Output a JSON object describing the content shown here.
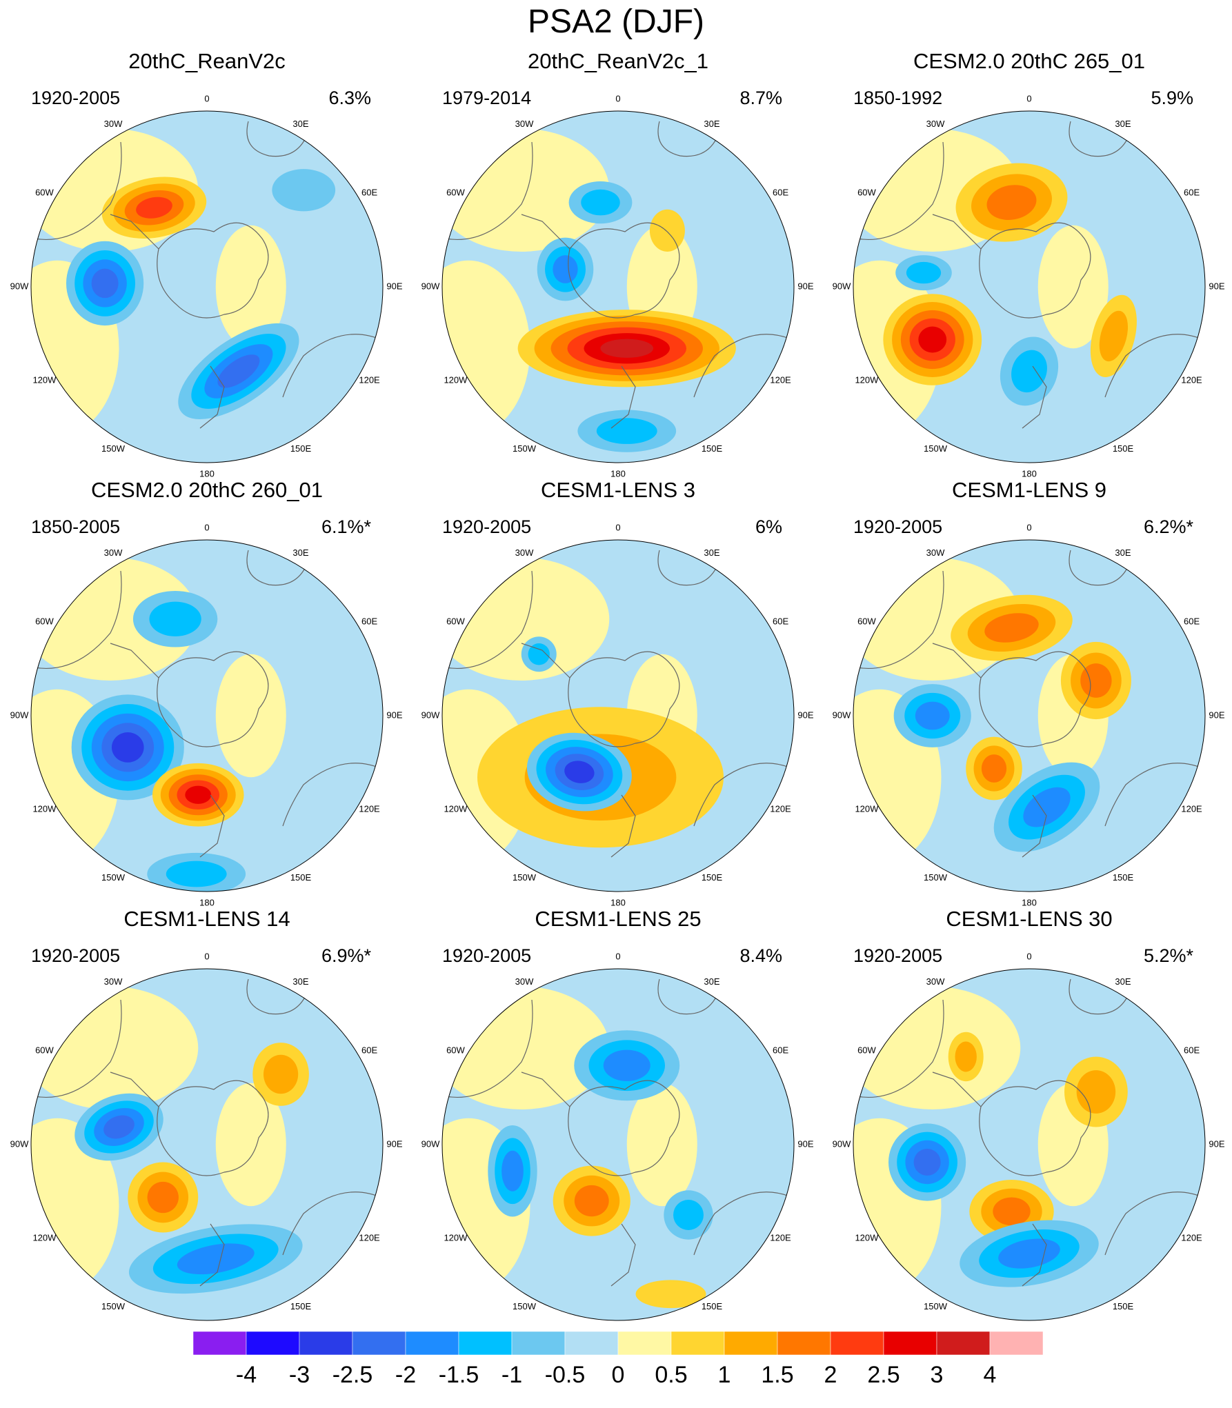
{
  "chart_data": {
    "type": "polar contour map panels",
    "title": "PSA2 (DJF)",
    "longitude_labels": [
      "0",
      "30E",
      "60E",
      "90E",
      "120E",
      "150E",
      "180",
      "150W",
      "120W",
      "90W",
      "60W",
      "30W"
    ],
    "colorbar": {
      "tick_labels": [
        "-4",
        "-3",
        "-2.5",
        "-2",
        "-1.5",
        "-1",
        "-0.5",
        "0",
        "0.5",
        "1",
        "1.5",
        "2",
        "2.5",
        "3",
        "4"
      ],
      "colors": [
        "#8a1ef0",
        "#1e0aff",
        "#2a3ce8",
        "#336ff0",
        "#1e8cff",
        "#00c0ff",
        "#6cc8f0",
        "#b2dff4",
        "#fff8a4",
        "#ffd530",
        "#ffaa00",
        "#ff7700",
        "#ff3b10",
        "#e80000",
        "#d01c1c",
        "#ffb2b2"
      ]
    },
    "panels": [
      {
        "title": "20thC_ReanV2c",
        "period": "1920-2005",
        "variance": "6.3%",
        "blobs": [
          {
            "x": -0.3,
            "y": 0.45,
            "rx": 0.3,
            "ry": 0.17,
            "rot": -10,
            "level": 4
          },
          {
            "x": -0.58,
            "y": 0.02,
            "rx": 0.22,
            "ry": 0.24,
            "rot": 0,
            "level": -4
          },
          {
            "x": 0.18,
            "y": -0.48,
            "rx": 0.4,
            "ry": 0.18,
            "rot": -35,
            "level": -4
          },
          {
            "x": 0.55,
            "y": 0.55,
            "rx": 0.18,
            "ry": 0.12,
            "rot": 0,
            "level": -1
          }
        ]
      },
      {
        "title": "20thC_ReanV2c_1",
        "period": "1979-2014",
        "variance": "8.7%",
        "blobs": [
          {
            "x": 0.05,
            "y": -0.35,
            "rx": 0.62,
            "ry": 0.22,
            "rot": 0,
            "level": 6
          },
          {
            "x": -0.3,
            "y": 0.1,
            "rx": 0.16,
            "ry": 0.18,
            "rot": 0,
            "level": -3
          },
          {
            "x": -0.1,
            "y": 0.48,
            "rx": 0.18,
            "ry": 0.12,
            "rot": 0,
            "level": -2
          },
          {
            "x": 0.05,
            "y": -0.82,
            "rx": 0.28,
            "ry": 0.12,
            "rot": 0,
            "level": -2
          },
          {
            "x": 0.28,
            "y": 0.32,
            "rx": 0.1,
            "ry": 0.12,
            "rot": 0,
            "level": 1
          }
        ]
      },
      {
        "title": "CESM2.0 20thC 265_01",
        "period": "1850-1992",
        "variance": "5.9%",
        "blobs": [
          {
            "x": -0.1,
            "y": 0.48,
            "rx": 0.32,
            "ry": 0.22,
            "rot": -10,
            "level": 3
          },
          {
            "x": -0.55,
            "y": -0.3,
            "rx": 0.28,
            "ry": 0.26,
            "rot": 0,
            "level": 5
          },
          {
            "x": 0.0,
            "y": -0.48,
            "rx": 0.16,
            "ry": 0.2,
            "rot": 20,
            "level": -2
          },
          {
            "x": 0.48,
            "y": -0.28,
            "rx": 0.12,
            "ry": 0.24,
            "rot": 15,
            "level": 2
          },
          {
            "x": -0.6,
            "y": 0.08,
            "rx": 0.16,
            "ry": 0.1,
            "rot": 0,
            "level": -2
          }
        ]
      },
      {
        "title": "CESM2.0 20thC 260_01",
        "period": "1850-2005",
        "variance": "6.1%*",
        "blobs": [
          {
            "x": -0.45,
            "y": -0.18,
            "rx": 0.32,
            "ry": 0.3,
            "rot": 0,
            "level": -5
          },
          {
            "x": -0.05,
            "y": -0.45,
            "rx": 0.26,
            "ry": 0.18,
            "rot": 0,
            "level": 5
          },
          {
            "x": -0.18,
            "y": 0.55,
            "rx": 0.24,
            "ry": 0.16,
            "rot": 0,
            "level": -2
          },
          {
            "x": -0.06,
            "y": -0.9,
            "rx": 0.28,
            "ry": 0.12,
            "rot": 0,
            "level": -2
          }
        ]
      },
      {
        "title": "CESM1-LENS 3",
        "period": "1920-2005",
        "variance": "6%",
        "blobs": [
          {
            "x": -0.1,
            "y": -0.35,
            "rx": 0.7,
            "ry": 0.4,
            "rot": 0,
            "level": 2
          },
          {
            "x": -0.22,
            "y": -0.32,
            "rx": 0.3,
            "ry": 0.22,
            "rot": 10,
            "level": -5
          },
          {
            "x": -0.45,
            "y": 0.35,
            "rx": 0.1,
            "ry": 0.1,
            "rot": 0,
            "level": -2
          }
        ]
      },
      {
        "title": "CESM1-LENS 9",
        "period": "1920-2005",
        "variance": "6.2%*",
        "blobs": [
          {
            "x": -0.1,
            "y": 0.5,
            "rx": 0.35,
            "ry": 0.18,
            "rot": -10,
            "level": 3
          },
          {
            "x": 0.38,
            "y": 0.2,
            "rx": 0.2,
            "ry": 0.22,
            "rot": 0,
            "level": 3
          },
          {
            "x": -0.55,
            "y": 0.0,
            "rx": 0.22,
            "ry": 0.18,
            "rot": 0,
            "level": -3
          },
          {
            "x": -0.2,
            "y": -0.3,
            "rx": 0.16,
            "ry": 0.18,
            "rot": 0,
            "level": 3
          },
          {
            "x": 0.1,
            "y": -0.52,
            "rx": 0.34,
            "ry": 0.2,
            "rot": -35,
            "level": -3
          }
        ]
      },
      {
        "title": "CESM1-LENS 14",
        "period": "1920-2005",
        "variance": "6.9%*",
        "blobs": [
          {
            "x": -0.5,
            "y": 0.1,
            "rx": 0.26,
            "ry": 0.18,
            "rot": -20,
            "level": -4
          },
          {
            "x": -0.25,
            "y": -0.3,
            "rx": 0.2,
            "ry": 0.2,
            "rot": 0,
            "level": 3
          },
          {
            "x": 0.42,
            "y": 0.4,
            "rx": 0.16,
            "ry": 0.18,
            "rot": 0,
            "level": 2
          },
          {
            "x": 0.05,
            "y": -0.65,
            "rx": 0.5,
            "ry": 0.18,
            "rot": -10,
            "level": -3
          }
        ]
      },
      {
        "title": "CESM1-LENS 25",
        "period": "1920-2005",
        "variance": "8.4%",
        "blobs": [
          {
            "x": 0.05,
            "y": 0.45,
            "rx": 0.3,
            "ry": 0.2,
            "rot": 0,
            "level": -3
          },
          {
            "x": -0.6,
            "y": -0.15,
            "rx": 0.14,
            "ry": 0.26,
            "rot": 0,
            "level": -3
          },
          {
            "x": -0.15,
            "y": -0.32,
            "rx": 0.22,
            "ry": 0.2,
            "rot": 0,
            "level": 3
          },
          {
            "x": 0.4,
            "y": -0.4,
            "rx": 0.14,
            "ry": 0.14,
            "rot": 0,
            "level": -2
          },
          {
            "x": 0.3,
            "y": -0.85,
            "rx": 0.2,
            "ry": 0.08,
            "rot": 0,
            "level": 1
          }
        ]
      },
      {
        "title": "CESM1-LENS 30",
        "period": "1920-2005",
        "variance": "5.2%*",
        "blobs": [
          {
            "x": -0.58,
            "y": -0.1,
            "rx": 0.22,
            "ry": 0.22,
            "rot": 0,
            "level": -4
          },
          {
            "x": -0.1,
            "y": -0.38,
            "rx": 0.24,
            "ry": 0.18,
            "rot": 0,
            "level": 3
          },
          {
            "x": 0.38,
            "y": 0.3,
            "rx": 0.18,
            "ry": 0.2,
            "rot": 0,
            "level": 2
          },
          {
            "x": -0.36,
            "y": 0.5,
            "rx": 0.1,
            "ry": 0.14,
            "rot": 0,
            "level": 2
          },
          {
            "x": 0.0,
            "y": -0.62,
            "rx": 0.4,
            "ry": 0.18,
            "rot": -10,
            "level": -3
          }
        ]
      }
    ]
  }
}
